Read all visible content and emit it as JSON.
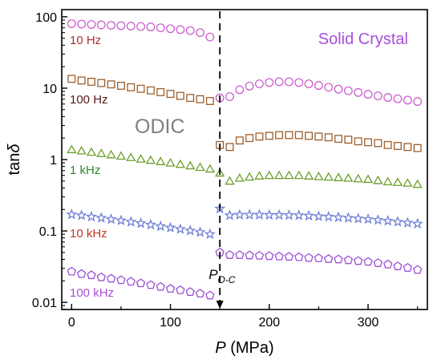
{
  "chart_data": {
    "type": "scatter",
    "title": "",
    "xlabel": {
      "symbol": "P",
      "unit": "(MPa)"
    },
    "ylabel": {
      "base": "tan",
      "symbol": "δ"
    },
    "x_range": [
      -10,
      360
    ],
    "y_range_log10": [
      -2.1,
      2.1
    ],
    "y_scale": "log",
    "grid": false,
    "x_ticks": [
      {
        "value": 0,
        "label": "0"
      },
      {
        "value": 100,
        "label": "100"
      },
      {
        "value": 200,
        "label": "200"
      },
      {
        "value": 300,
        "label": "300"
      }
    ],
    "y_ticks": [
      {
        "value": 0.01,
        "label": "0.01"
      },
      {
        "value": 0.1,
        "label": "0.1"
      },
      {
        "value": 1,
        "label": "1"
      },
      {
        "value": 10,
        "label": "10"
      },
      {
        "value": 100,
        "label": "100"
      }
    ],
    "transition": {
      "x": 150,
      "label_main": "P",
      "label_sub": "O-C"
    },
    "phase_labels": [
      {
        "text": "ODIC",
        "color": "#808080"
      },
      {
        "text": "Solid Crystal",
        "color": "#a54fdc"
      }
    ],
    "series": [
      {
        "name": "10 Hz",
        "label_color": "#b02a2a",
        "color": "#cc5fcc",
        "marker": "circle",
        "x": [
          0,
          10,
          20,
          30,
          40,
          50,
          60,
          70,
          80,
          90,
          100,
          110,
          120,
          130,
          140,
          150,
          160,
          170,
          180,
          190,
          200,
          210,
          220,
          230,
          240,
          250,
          260,
          270,
          280,
          290,
          300,
          310,
          320,
          330,
          340,
          350
        ],
        "y": [
          80,
          79,
          78,
          77,
          76,
          75,
          74,
          73,
          72,
          70,
          68,
          66,
          64,
          60,
          52,
          7.3,
          7.6,
          9.5,
          10.7,
          11.5,
          12.0,
          12.3,
          12.3,
          12.0,
          11.5,
          10.9,
          10.3,
          9.7,
          9.2,
          8.7,
          8.2,
          7.8,
          7.4,
          7.1,
          6.8,
          6.5
        ]
      },
      {
        "name": "100 Hz",
        "label_color": "#5a1818",
        "color": "#9b5e2c",
        "marker": "square",
        "x": [
          0,
          10,
          20,
          30,
          40,
          50,
          60,
          70,
          80,
          90,
          100,
          110,
          120,
          130,
          140,
          150,
          160,
          170,
          180,
          190,
          200,
          210,
          220,
          230,
          240,
          250,
          260,
          270,
          280,
          290,
          300,
          310,
          320,
          330,
          340,
          350
        ],
        "y": [
          13.5,
          12.8,
          12.3,
          11.8,
          11.3,
          10.8,
          10.3,
          9.8,
          9.3,
          8.8,
          8.3,
          7.8,
          7.3,
          7.0,
          6.6,
          1.6,
          1.5,
          1.85,
          2.0,
          2.1,
          2.15,
          2.2,
          2.2,
          2.2,
          2.15,
          2.1,
          2.05,
          1.95,
          1.9,
          1.8,
          1.75,
          1.7,
          1.6,
          1.55,
          1.5,
          1.45
        ]
      },
      {
        "name": "1 kHz",
        "label_color": "#2a8a2a",
        "color": "#6c9e2a",
        "marker": "triangle",
        "x": [
          0,
          10,
          20,
          30,
          40,
          50,
          60,
          70,
          80,
          90,
          100,
          110,
          120,
          130,
          140,
          150,
          160,
          170,
          180,
          190,
          200,
          210,
          220,
          230,
          240,
          250,
          260,
          270,
          280,
          290,
          300,
          310,
          320,
          330,
          340,
          350
        ],
        "y": [
          1.38,
          1.33,
          1.27,
          1.22,
          1.17,
          1.12,
          1.07,
          1.02,
          0.98,
          0.94,
          0.9,
          0.86,
          0.82,
          0.78,
          0.74,
          0.65,
          0.5,
          0.55,
          0.57,
          0.59,
          0.6,
          0.6,
          0.6,
          0.6,
          0.59,
          0.58,
          0.57,
          0.56,
          0.55,
          0.54,
          0.53,
          0.51,
          0.49,
          0.48,
          0.47,
          0.45
        ]
      },
      {
        "name": "10 kHz",
        "label_color": "#c0392b",
        "color": "#6f7fd8",
        "marker": "star",
        "x": [
          0,
          10,
          20,
          30,
          40,
          50,
          60,
          70,
          80,
          90,
          100,
          110,
          120,
          130,
          140,
          150,
          160,
          170,
          180,
          190,
          200,
          210,
          220,
          230,
          240,
          250,
          260,
          270,
          280,
          290,
          300,
          310,
          320,
          330,
          340,
          350
        ],
        "y": [
          0.17,
          0.165,
          0.158,
          0.152,
          0.146,
          0.14,
          0.134,
          0.128,
          0.122,
          0.116,
          0.111,
          0.106,
          0.101,
          0.096,
          0.09,
          0.205,
          0.165,
          0.168,
          0.168,
          0.168,
          0.167,
          0.167,
          0.166,
          0.165,
          0.163,
          0.16,
          0.158,
          0.155,
          0.152,
          0.149,
          0.146,
          0.142,
          0.138,
          0.134,
          0.13,
          0.126
        ]
      },
      {
        "name": "100 kHz",
        "label_color": "#a54fdc",
        "color": "#9b4fd6",
        "marker": "pentagon",
        "x": [
          0,
          10,
          20,
          30,
          40,
          50,
          60,
          70,
          80,
          90,
          100,
          110,
          120,
          130,
          140,
          150,
          160,
          170,
          180,
          190,
          200,
          210,
          220,
          230,
          240,
          250,
          260,
          270,
          280,
          290,
          300,
          310,
          320,
          330,
          340,
          350
        ],
        "y": [
          0.027,
          0.025,
          0.024,
          0.0225,
          0.0215,
          0.0205,
          0.0195,
          0.0185,
          0.0175,
          0.0165,
          0.0155,
          0.0148,
          0.014,
          0.0133,
          0.0125,
          0.05,
          0.046,
          0.046,
          0.0455,
          0.045,
          0.0445,
          0.044,
          0.0435,
          0.043,
          0.042,
          0.0415,
          0.0405,
          0.04,
          0.039,
          0.038,
          0.037,
          0.0355,
          0.034,
          0.032,
          0.0305,
          0.0285
        ]
      }
    ]
  }
}
